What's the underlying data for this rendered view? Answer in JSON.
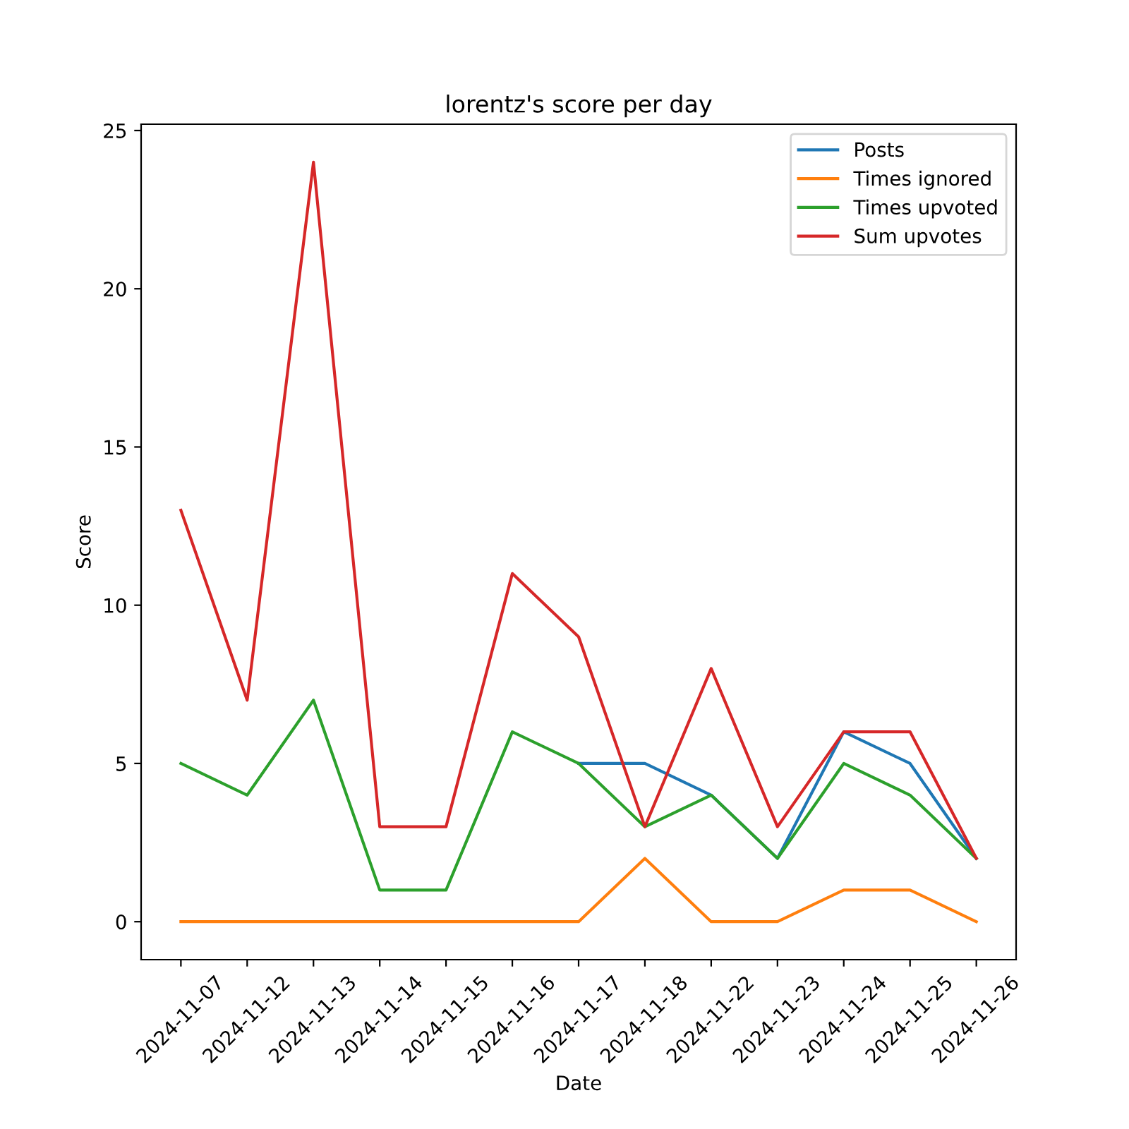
{
  "chart_data": {
    "type": "line",
    "title": "lorentz's score per day",
    "xlabel": "Date",
    "ylabel": "Score",
    "categories": [
      "2024-11-07",
      "2024-11-12",
      "2024-11-13",
      "2024-11-14",
      "2024-11-15",
      "2024-11-16",
      "2024-11-17",
      "2024-11-18",
      "2024-11-22",
      "2024-11-23",
      "2024-11-24",
      "2024-11-25",
      "2024-11-26"
    ],
    "series": [
      {
        "name": "Posts",
        "color": "#1f77b4",
        "values": [
          null,
          null,
          null,
          null,
          null,
          null,
          5,
          5,
          4,
          2,
          6,
          5,
          2
        ]
      },
      {
        "name": "Times ignored",
        "color": "#ff7f0e",
        "values": [
          0,
          0,
          0,
          0,
          0,
          0,
          0,
          2,
          0,
          0,
          1,
          1,
          0
        ]
      },
      {
        "name": "Times upvoted",
        "color": "#2ca02c",
        "values": [
          5,
          4,
          7,
          1,
          1,
          6,
          5,
          3,
          4,
          2,
          5,
          4,
          2
        ]
      },
      {
        "name": "Sum upvotes",
        "color": "#d62728",
        "values": [
          13,
          7,
          24,
          3,
          3,
          11,
          9,
          3,
          8,
          3,
          6,
          6,
          2
        ]
      }
    ],
    "ylim": [
      -1.2,
      25.2
    ],
    "yticks": [
      0,
      5,
      10,
      15,
      20,
      25
    ],
    "legend": "top right",
    "grid": false,
    "marker": "none",
    "line_style": "solid"
  }
}
